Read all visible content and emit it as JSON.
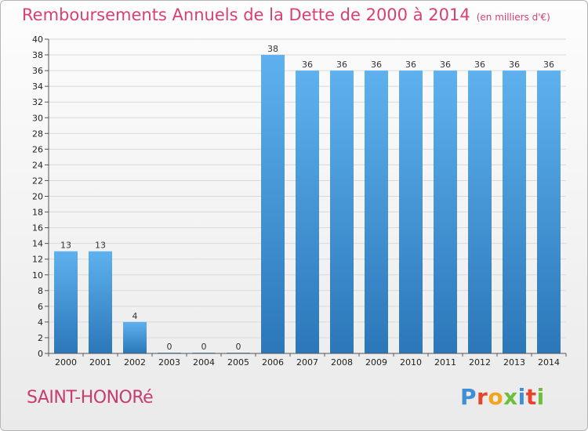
{
  "header": {
    "title": "Remboursements Annuels de la Dette de 2000 à 2014",
    "unit": "(en milliers d'€)"
  },
  "footer": {
    "commune": "SAINT-HONORé",
    "logo": [
      "P",
      "r",
      "o",
      "x",
      "i",
      "t",
      "i"
    ],
    "logo_colors": [
      "#3f8fd6",
      "#e8442c",
      "#f2a51a",
      "#6cbf3a",
      "#3f8fd6",
      "#e8442c",
      "#6cbf3a"
    ]
  },
  "chart_data": {
    "type": "bar",
    "categories": [
      "2000",
      "2001",
      "2002",
      "2003",
      "2004",
      "2005",
      "2006",
      "2007",
      "2008",
      "2009",
      "2010",
      "2011",
      "2012",
      "2013",
      "2014"
    ],
    "values": [
      13,
      13,
      4,
      0,
      0,
      0,
      38,
      36,
      36,
      36,
      36,
      36,
      36,
      36,
      36
    ],
    "ylim": [
      0,
      40
    ],
    "yticks": [
      0,
      2,
      4,
      6,
      8,
      10,
      12,
      14,
      16,
      18,
      20,
      22,
      24,
      26,
      28,
      30,
      32,
      34,
      36,
      38,
      40
    ],
    "grid": true,
    "bar_color": "#3a8fd8"
  }
}
